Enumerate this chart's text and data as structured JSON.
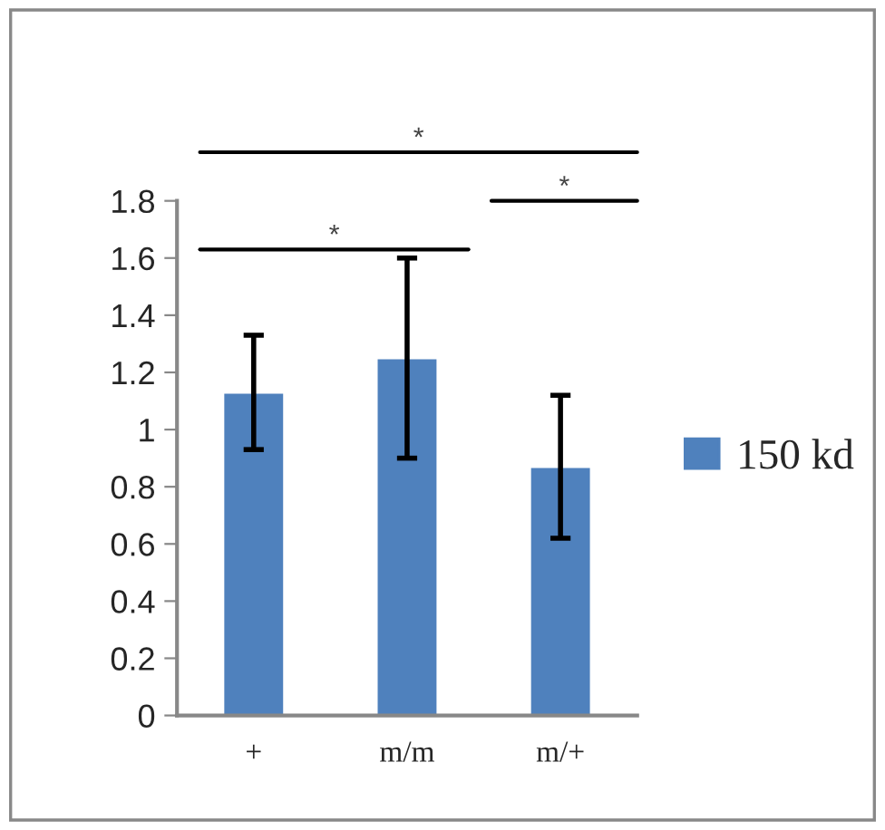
{
  "chart_data": {
    "type": "bar",
    "categories": [
      "+",
      "m/m",
      "m/+"
    ],
    "series": [
      {
        "name": "150 kd",
        "color": "#4f81bd",
        "values": [
          1.13,
          1.25,
          0.87
        ],
        "errors": [
          0.2,
          0.35,
          0.25
        ]
      }
    ],
    "ylim": [
      0,
      1.8
    ],
    "yticks": [
      0,
      0.2,
      0.4,
      0.6,
      0.8,
      1,
      1.2,
      1.4,
      1.6,
      1.8
    ],
    "grid": false,
    "legend": "right",
    "annotations": [
      "*",
      "*",
      "*"
    ]
  }
}
